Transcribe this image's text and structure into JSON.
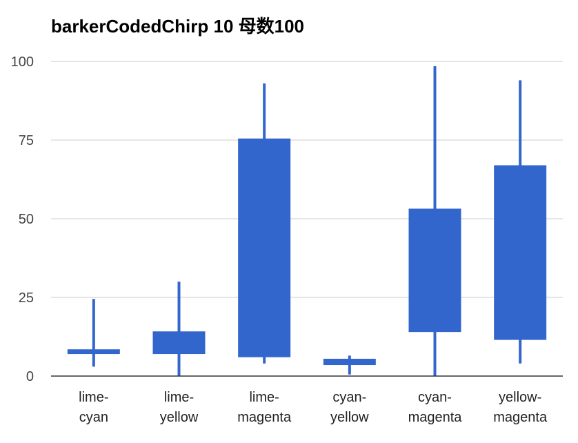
{
  "chart_data": {
    "type": "candlestick",
    "title": "barkerCodedChirp 10 母数100",
    "xlabel": "",
    "ylabel": "",
    "ylim": [
      0,
      100
    ],
    "yticks": [
      0,
      25,
      50,
      75,
      100
    ],
    "grid": true,
    "legend": "none",
    "color": "#3366cc",
    "categories": [
      [
        "lime-",
        "cyan"
      ],
      [
        "lime-",
        "yellow"
      ],
      [
        "lime-",
        "magenta"
      ],
      [
        "cyan-",
        "yellow"
      ],
      [
        "cyan-",
        "magenta"
      ],
      [
        "yellow-",
        "magenta"
      ]
    ],
    "series": [
      {
        "low": [
          3.0,
          0.0,
          4.0,
          0.5,
          0.0,
          4.0
        ],
        "open": [
          7.0,
          7.0,
          6.0,
          3.5,
          14.0,
          11.5
        ],
        "close": [
          8.5,
          14.2,
          75.5,
          5.5,
          53.2,
          67.0
        ],
        "high": [
          24.5,
          30.0,
          93.0,
          6.5,
          98.5,
          94.0
        ]
      }
    ]
  }
}
